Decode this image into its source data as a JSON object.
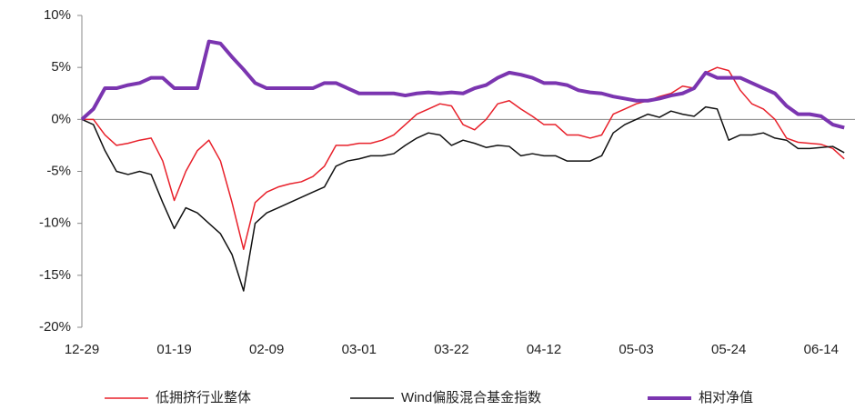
{
  "chart_data": {
    "type": "line",
    "categories": [
      "12-29",
      null,
      null,
      null,
      null,
      null,
      null,
      null,
      "01-19",
      null,
      null,
      null,
      null,
      null,
      null,
      null,
      "02-09",
      null,
      null,
      null,
      null,
      null,
      null,
      null,
      "03-01",
      null,
      null,
      null,
      null,
      null,
      null,
      null,
      "03-22",
      null,
      null,
      null,
      null,
      null,
      null,
      null,
      "04-12",
      null,
      null,
      null,
      null,
      null,
      null,
      null,
      "05-03",
      null,
      null,
      null,
      null,
      null,
      null,
      null,
      "05-24",
      null,
      null,
      null,
      null,
      null,
      null,
      null,
      "06-14",
      null,
      null
    ],
    "series": [
      {
        "name": "低拥挤行业整体",
        "color": "#e8202a",
        "width": 1.5,
        "values": [
          0,
          0,
          -1.5,
          -2.5,
          -2.3,
          -2,
          -1.8,
          -4,
          -7.8,
          -5,
          -3,
          -2,
          -4,
          -8,
          -12.5,
          -8,
          -7,
          -6.5,
          -6.2,
          -6,
          -5.5,
          -4.5,
          -2.5,
          -2.5,
          -2.3,
          -2.3,
          -2,
          -1.5,
          -0.5,
          0.5,
          1,
          1.5,
          1.3,
          -0.5,
          -1,
          0,
          1.5,
          1.8,
          1,
          0.3,
          -0.5,
          -0.5,
          -1.5,
          -1.5,
          -1.8,
          -1.5,
          0.5,
          1,
          1.5,
          1.8,
          2.2,
          2.5,
          3.2,
          3,
          4.5,
          5,
          4.7,
          2.8,
          1.5,
          1,
          0,
          -1.8,
          -2.2,
          -2.3,
          -2.4,
          -2.8,
          -3.8
        ]
      },
      {
        "name": "Wind偏股混合基金指数",
        "color": "#111111",
        "width": 1.5,
        "values": [
          0,
          -0.5,
          -3,
          -5,
          -5.3,
          -5,
          -5.3,
          -8,
          -10.5,
          -8.5,
          -9,
          -10,
          -11,
          -13,
          -16.5,
          -10,
          -9,
          -8.5,
          -8,
          -7.5,
          -7,
          -6.5,
          -4.5,
          -4,
          -3.8,
          -3.5,
          -3.5,
          -3.3,
          -2.5,
          -1.8,
          -1.3,
          -1.5,
          -2.5,
          -2,
          -2.3,
          -2.7,
          -2.5,
          -2.6,
          -3.5,
          -3.3,
          -3.5,
          -3.5,
          -4,
          -4,
          -4,
          -3.5,
          -1.3,
          -0.5,
          0,
          0.5,
          0.2,
          0.8,
          0.5,
          0.3,
          1.2,
          1,
          -2,
          -1.5,
          -1.5,
          -1.3,
          -1.8,
          -2,
          -2.8,
          -2.8,
          -2.7,
          -2.6,
          -3.2
        ]
      },
      {
        "name": "相对净值",
        "color": "#7b35b0",
        "width": 4,
        "values": [
          0,
          1,
          3,
          3,
          3.3,
          3.5,
          4,
          4,
          3,
          3,
          3,
          7.5,
          7.3,
          6,
          4.8,
          3.5,
          3,
          3,
          3,
          3,
          3,
          3.5,
          3.5,
          3,
          2.5,
          2.5,
          2.5,
          2.5,
          2.3,
          2.5,
          2.6,
          2.5,
          2.6,
          2.5,
          3,
          3.3,
          4,
          4.5,
          4.3,
          4,
          3.5,
          3.5,
          3.3,
          2.8,
          2.6,
          2.5,
          2.2,
          2,
          1.8,
          1.8,
          2,
          2.3,
          2.5,
          3,
          4.5,
          4,
          4,
          4,
          3.5,
          3,
          2.5,
          1.3,
          0.5,
          0.5,
          0.3,
          -0.5,
          -0.8
        ]
      }
    ],
    "ylim": [
      -20,
      10
    ],
    "yticks": [
      {
        "value": -20,
        "label": "-20%"
      },
      {
        "value": -15,
        "label": "-15%"
      },
      {
        "value": -10,
        "label": "-10%"
      },
      {
        "value": -5,
        "label": "-5%"
      },
      {
        "value": 0,
        "label": "0%"
      },
      {
        "value": 5,
        "label": "5%"
      },
      {
        "value": 10,
        "label": "10%"
      }
    ],
    "legend": "bottom"
  }
}
